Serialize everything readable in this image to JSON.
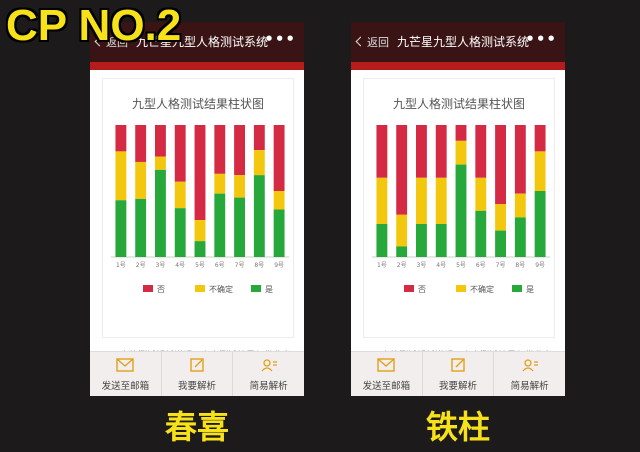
{
  "overlay_title": "CP NO.2",
  "colors": {
    "no": "#d42a44",
    "unsure": "#f4c70f",
    "yes": "#27a83a",
    "nav_bg": "#3a1414",
    "accent": "#b71c1c",
    "caption": "#f7e21a"
  },
  "phones": [
    {
      "nav": {
        "back_label": "返回",
        "title": "九芒星九型人格测试系统",
        "more_label": "•••"
      },
      "snippet_text": "人格测试解析说明，个人测试结果仅供参考",
      "toolbar": [
        {
          "label": "发送至邮箱",
          "icon": "envelope-icon"
        },
        {
          "label": "我要解析",
          "icon": "edit-icon"
        },
        {
          "label": "简易解析",
          "icon": "user-list-icon"
        }
      ],
      "caption": "春喜"
    },
    {
      "nav": {
        "back_label": "返回",
        "title": "九芒星九型人格测试系统",
        "more_label": "•••"
      },
      "snippet_text": "人格测试解析说明，个人测试结果仅供参考",
      "toolbar": [
        {
          "label": "发送至邮箱",
          "icon": "envelope-icon"
        },
        {
          "label": "我要解析",
          "icon": "edit-icon"
        },
        {
          "label": "简易解析",
          "icon": "user-list-icon"
        }
      ],
      "caption": "铁柱"
    }
  ],
  "chart_data": [
    {
      "type": "bar",
      "stacked": true,
      "title": "九型人格测试结果柱状图",
      "categories": [
        "1号",
        "2号",
        "3号",
        "4号",
        "5号",
        "6号",
        "7号",
        "8号",
        "9号"
      ],
      "series": [
        {
          "name": "否",
          "values": [
            20,
            28,
            24,
            43,
            72,
            37,
            38,
            19,
            50
          ]
        },
        {
          "name": "不确定",
          "values": [
            37,
            28,
            10,
            20,
            16,
            15,
            17,
            19,
            14
          ]
        },
        {
          "name": "是",
          "values": [
            43,
            44,
            66,
            37,
            12,
            48,
            45,
            62,
            36
          ]
        }
      ],
      "ylim": [
        0,
        100
      ],
      "legend_position": "bottom"
    },
    {
      "type": "bar",
      "stacked": true,
      "title": "九型人格测试结果柱状图",
      "categories": [
        "1号",
        "2号",
        "3号",
        "4号",
        "5号",
        "6号",
        "7号",
        "8号",
        "9号"
      ],
      "series": [
        {
          "name": "否",
          "values": [
            40,
            68,
            40,
            40,
            12,
            40,
            60,
            52,
            20
          ]
        },
        {
          "name": "不确定",
          "values": [
            35,
            24,
            35,
            35,
            18,
            25,
            20,
            18,
            30
          ]
        },
        {
          "name": "是",
          "values": [
            25,
            8,
            25,
            25,
            70,
            35,
            20,
            30,
            50
          ]
        }
      ],
      "ylim": [
        0,
        100
      ],
      "legend_position": "bottom"
    }
  ]
}
